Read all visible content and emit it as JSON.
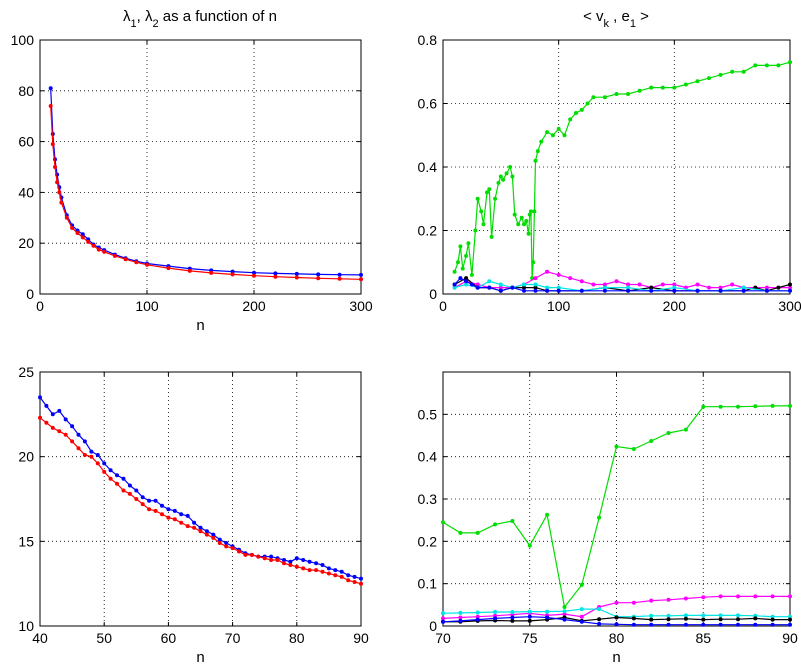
{
  "chart_data": [
    {
      "type": "line",
      "title": "λ1, λ2 as a function of n",
      "xlabel": "n",
      "ylabel": "",
      "xlim": [
        0,
        300
      ],
      "ylim": [
        0,
        100
      ],
      "xticks": [
        "0",
        "100",
        "200",
        "300"
      ],
      "yticks": [
        "0",
        "20",
        "40",
        "60",
        "80",
        "100"
      ],
      "grid": true,
      "series": [
        {
          "color": "#0000ff",
          "x": [
            10,
            12,
            14,
            16,
            18,
            20,
            25,
            30,
            35,
            40,
            45,
            50,
            55,
            60,
            70,
            80,
            90,
            100,
            120,
            140,
            160,
            180,
            200,
            220,
            240,
            260,
            280,
            300
          ],
          "y": [
            81,
            63,
            53,
            47,
            42,
            38,
            31,
            27,
            25,
            23.5,
            21.5,
            19.5,
            18.3,
            17.3,
            15.5,
            14.1,
            12.9,
            12,
            11,
            10,
            9.3,
            8.8,
            8.4,
            8.1,
            7.9,
            7.7,
            7.6,
            7.5
          ]
        },
        {
          "color": "#ff0000",
          "x": [
            10,
            12,
            14,
            16,
            18,
            20,
            25,
            30,
            35,
            40,
            45,
            50,
            55,
            60,
            70,
            80,
            90,
            100,
            120,
            140,
            160,
            180,
            200,
            220,
            240,
            260,
            280,
            300
          ],
          "y": [
            74,
            59,
            50,
            44,
            40,
            36,
            30,
            26,
            24,
            22.3,
            20.5,
            19,
            17.5,
            16.6,
            15,
            13.7,
            12.5,
            11.5,
            10.2,
            9.1,
            8.3,
            7.7,
            7.2,
            6.8,
            6.5,
            6.2,
            6,
            5.8
          ]
        }
      ]
    },
    {
      "type": "line",
      "title": "< v_k , e_1 >",
      "xlabel": "",
      "ylabel": "",
      "xlim": [
        0,
        300
      ],
      "ylim": [
        0,
        0.8
      ],
      "xticks": [
        "0",
        "100",
        "200",
        "300"
      ],
      "yticks": [
        "0",
        "0.2",
        "0.4",
        "0.6",
        "0.8"
      ],
      "grid": true,
      "series": [
        {
          "color": "#00dd00",
          "x": [
            10,
            13,
            15,
            17,
            20,
            22,
            25,
            28,
            30,
            33,
            35,
            38,
            40,
            42,
            45,
            48,
            50,
            52,
            55,
            58,
            60,
            62,
            65,
            68,
            70,
            72,
            74,
            75,
            76,
            77,
            78,
            79,
            80,
            82,
            85,
            90,
            95,
            100,
            105,
            110,
            115,
            120,
            125,
            130,
            140,
            150,
            160,
            170,
            180,
            190,
            200,
            210,
            220,
            230,
            240,
            250,
            260,
            270,
            280,
            290,
            300
          ],
          "y": [
            0.07,
            0.1,
            0.15,
            0.08,
            0.12,
            0.16,
            0.06,
            0.2,
            0.3,
            0.26,
            0.22,
            0.32,
            0.33,
            0.18,
            0.3,
            0.35,
            0.37,
            0.36,
            0.38,
            0.4,
            0.37,
            0.25,
            0.22,
            0.24,
            0.22,
            0.23,
            0.19,
            0.25,
            0.26,
            0.05,
            0.1,
            0.26,
            0.42,
            0.45,
            0.48,
            0.51,
            0.5,
            0.52,
            0.5,
            0.55,
            0.57,
            0.58,
            0.6,
            0.62,
            0.62,
            0.63,
            0.63,
            0.64,
            0.65,
            0.65,
            0.65,
            0.66,
            0.67,
            0.68,
            0.69,
            0.7,
            0.7,
            0.72,
            0.72,
            0.72,
            0.73
          ]
        },
        {
          "color": "#ff00ff",
          "x": [
            10,
            20,
            30,
            40,
            50,
            60,
            70,
            80,
            90,
            100,
            110,
            120,
            130,
            140,
            150,
            160,
            170,
            180,
            190,
            200,
            210,
            220,
            230,
            240,
            250,
            260,
            270,
            280,
            290,
            300
          ],
          "y": [
            0.02,
            0.04,
            0.03,
            0.02,
            0.02,
            0.02,
            0.03,
            0.05,
            0.07,
            0.06,
            0.05,
            0.04,
            0.03,
            0.03,
            0.04,
            0.03,
            0.03,
            0.02,
            0.03,
            0.03,
            0.02,
            0.03,
            0.02,
            0.02,
            0.03,
            0.02,
            0.02,
            0.02,
            0.02,
            0.02
          ]
        },
        {
          "color": "#000000",
          "x": [
            10,
            20,
            30,
            40,
            50,
            60,
            70,
            80,
            90,
            100,
            120,
            140,
            160,
            180,
            200,
            220,
            240,
            260,
            270,
            280,
            290,
            300
          ],
          "y": [
            0.03,
            0.05,
            0.02,
            0.02,
            0.01,
            0.02,
            0.02,
            0.02,
            0.01,
            0.01,
            0.01,
            0.02,
            0.01,
            0.02,
            0.01,
            0.01,
            0.01,
            0.01,
            0.02,
            0.01,
            0.02,
            0.03
          ]
        },
        {
          "color": "#00e5e5",
          "x": [
            10,
            20,
            30,
            40,
            50,
            60,
            70,
            80,
            90,
            100,
            120,
            140,
            160,
            180,
            200,
            220,
            240,
            260,
            280,
            300
          ],
          "y": [
            0.02,
            0.03,
            0.02,
            0.04,
            0.03,
            0.02,
            0.03,
            0.03,
            0.02,
            0.02,
            0.01,
            0.02,
            0.02,
            0.01,
            0.02,
            0.01,
            0.01,
            0.02,
            0.01,
            0.01
          ]
        },
        {
          "color": "#0000ff",
          "x": [
            10,
            15,
            20,
            25,
            30,
            40,
            50,
            60,
            70,
            80,
            90,
            100,
            120,
            140,
            160,
            180,
            200,
            220,
            240,
            260,
            280,
            300
          ],
          "y": [
            0.03,
            0.05,
            0.04,
            0.03,
            0.02,
            0.02,
            0.01,
            0.02,
            0.01,
            0.01,
            0.01,
            0.01,
            0.01,
            0.01,
            0.01,
            0.01,
            0.01,
            0.01,
            0.01,
            0.01,
            0.01,
            0.01
          ]
        }
      ]
    },
    {
      "type": "line",
      "title": "",
      "xlabel": "n",
      "ylabel": "",
      "xlim": [
        40,
        90
      ],
      "ylim": [
        10,
        25
      ],
      "xticks": [
        "40",
        "50",
        "60",
        "70",
        "80",
        "90"
      ],
      "yticks": [
        "10",
        "15",
        "20",
        "25"
      ],
      "grid": true,
      "series": [
        {
          "color": "#0000ff",
          "x": [
            40,
            41,
            42,
            43,
            44,
            45,
            46,
            47,
            48,
            49,
            50,
            51,
            52,
            53,
            54,
            55,
            56,
            57,
            58,
            59,
            60,
            61,
            62,
            63,
            64,
            65,
            66,
            67,
            68,
            69,
            70,
            71,
            72,
            73,
            74,
            75,
            76,
            77,
            78,
            79,
            80,
            81,
            82,
            83,
            84,
            85,
            86,
            87,
            88,
            89,
            90
          ],
          "y": [
            23.5,
            23.0,
            22.5,
            22.7,
            22.2,
            21.8,
            21.3,
            20.9,
            20.3,
            20.1,
            19.6,
            19.2,
            18.9,
            18.7,
            18.3,
            18.0,
            17.6,
            17.4,
            17.4,
            17.1,
            16.9,
            16.8,
            16.6,
            16.5,
            16.1,
            15.8,
            15.6,
            15.4,
            15.1,
            14.9,
            14.7,
            14.5,
            14.3,
            14.2,
            14.1,
            14.1,
            14.1,
            14.0,
            13.9,
            13.8,
            14.0,
            13.9,
            13.8,
            13.7,
            13.6,
            13.4,
            13.3,
            13.2,
            13.0,
            12.9,
            12.8
          ]
        },
        {
          "color": "#ff0000",
          "x": [
            40,
            41,
            42,
            43,
            44,
            45,
            46,
            47,
            48,
            49,
            50,
            51,
            52,
            53,
            54,
            55,
            56,
            57,
            58,
            59,
            60,
            61,
            62,
            63,
            64,
            65,
            66,
            67,
            68,
            69,
            70,
            71,
            72,
            73,
            74,
            75,
            76,
            77,
            78,
            79,
            80,
            81,
            82,
            83,
            84,
            85,
            86,
            87,
            88,
            89,
            90
          ],
          "y": [
            22.3,
            22.0,
            21.7,
            21.5,
            21.3,
            20.9,
            20.5,
            20.1,
            20.0,
            19.6,
            19.1,
            18.7,
            18.4,
            18.0,
            17.8,
            17.5,
            17.2,
            16.9,
            16.8,
            16.6,
            16.4,
            16.3,
            16.1,
            15.9,
            15.8,
            15.6,
            15.4,
            15.2,
            14.9,
            14.7,
            14.6,
            14.4,
            14.2,
            14.2,
            14.1,
            14.0,
            13.9,
            13.9,
            13.7,
            13.6,
            13.5,
            13.4,
            13.3,
            13.3,
            13.2,
            13.1,
            13.0,
            12.9,
            12.7,
            12.6,
            12.5
          ]
        }
      ]
    },
    {
      "type": "line",
      "title": "",
      "xlabel": "n",
      "ylabel": "",
      "xlim": [
        70,
        90
      ],
      "ylim": [
        0,
        0.6
      ],
      "xticks": [
        "70",
        "75",
        "80",
        "85",
        "90"
      ],
      "yticks": [
        "0",
        "0.1",
        "0.2",
        "0.3",
        "0.4",
        "0.5"
      ],
      "grid": true,
      "series": [
        {
          "color": "#00dd00",
          "x": [
            70,
            71,
            72,
            73,
            74,
            75,
            76,
            77,
            78,
            79,
            80,
            81,
            82,
            83,
            84,
            85,
            86,
            87,
            88,
            89,
            90
          ],
          "y": [
            0.245,
            0.22,
            0.22,
            0.24,
            0.248,
            0.19,
            0.263,
            0.045,
            0.097,
            0.256,
            0.424,
            0.418,
            0.437,
            0.456,
            0.464,
            0.518,
            0.518,
            0.518,
            0.519,
            0.52,
            0.52
          ]
        },
        {
          "color": "#ff00ff",
          "x": [
            70,
            71,
            72,
            73,
            74,
            75,
            76,
            77,
            78,
            79,
            80,
            81,
            82,
            83,
            84,
            85,
            86,
            87,
            88,
            89,
            90
          ],
          "y": [
            0.018,
            0.02,
            0.022,
            0.024,
            0.027,
            0.03,
            0.025,
            0.028,
            0.022,
            0.045,
            0.055,
            0.055,
            0.06,
            0.062,
            0.065,
            0.068,
            0.07,
            0.07,
            0.07,
            0.07,
            0.07
          ]
        },
        {
          "color": "#00e5e5",
          "x": [
            70,
            71,
            72,
            73,
            74,
            75,
            76,
            77,
            78,
            79,
            80,
            81,
            82,
            83,
            84,
            85,
            86,
            87,
            88,
            89,
            90
          ],
          "y": [
            0.03,
            0.031,
            0.032,
            0.033,
            0.033,
            0.034,
            0.034,
            0.035,
            0.04,
            0.04,
            0.022,
            0.022,
            0.024,
            0.024,
            0.025,
            0.025,
            0.025,
            0.025,
            0.024,
            0.022,
            0.022
          ]
        },
        {
          "color": "#000000",
          "x": [
            70,
            71,
            72,
            73,
            74,
            75,
            76,
            77,
            78,
            79,
            80,
            81,
            82,
            83,
            84,
            85,
            86,
            87,
            88,
            89,
            90
          ],
          "y": [
            0.01,
            0.01,
            0.012,
            0.013,
            0.012,
            0.012,
            0.015,
            0.02,
            0.012,
            0.016,
            0.02,
            0.018,
            0.015,
            0.016,
            0.017,
            0.015,
            0.016,
            0.016,
            0.018,
            0.015,
            0.015
          ]
        },
        {
          "color": "#0000ff",
          "x": [
            70,
            71,
            72,
            73,
            74,
            75,
            76,
            77,
            78,
            79,
            80,
            81,
            82,
            83,
            84,
            85,
            86,
            87,
            88,
            89,
            90
          ],
          "y": [
            0.01,
            0.012,
            0.015,
            0.018,
            0.02,
            0.022,
            0.02,
            0.015,
            0.01,
            0.005,
            0.004,
            0.003,
            0.003,
            0.003,
            0.003,
            0.003,
            0.003,
            0.003,
            0.003,
            0.003,
            0.003
          ]
        }
      ]
    }
  ]
}
